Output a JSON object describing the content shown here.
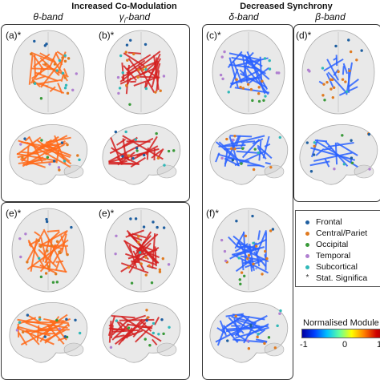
{
  "groups": {
    "increased": "Increased Co-Modulation",
    "decreased": "Decreased Synchrony"
  },
  "bands": {
    "theta": "θ-band",
    "gamma": "γ",
    "gamma_sub": "l",
    "gamma_suffix": "-band",
    "delta": "δ-band",
    "beta": "β-band"
  },
  "panels": {
    "a": "(a)*",
    "b": "(b)*",
    "c": "(c)*",
    "d": "(d)*",
    "e1": "(e)*",
    "e2": "(e)*",
    "f": "(f)*"
  },
  "legend": [
    {
      "label": "Frontal",
      "color": "#1f5fa0",
      "marker": "dot"
    },
    {
      "label": "Central/Pariet",
      "color": "#e07a20",
      "marker": "dot"
    },
    {
      "label": "Occipital",
      "color": "#3a9a3a",
      "marker": "dot"
    },
    {
      "label": "Temporal",
      "color": "#b080d0",
      "marker": "dot"
    },
    {
      "label": "Subcortical",
      "color": "#30b8b8",
      "marker": "dot"
    },
    {
      "label": "Stat. Significa",
      "color": "#333333",
      "marker": "star"
    }
  ],
  "colorbar": {
    "title": "Normalised Module",
    "min": "-1",
    "mid": "0",
    "max": "1"
  },
  "colors": {
    "orange": "#ff6a1a",
    "red": "#d42020",
    "blue": "#2a62ff",
    "brain": "#cfcfcf"
  }
}
